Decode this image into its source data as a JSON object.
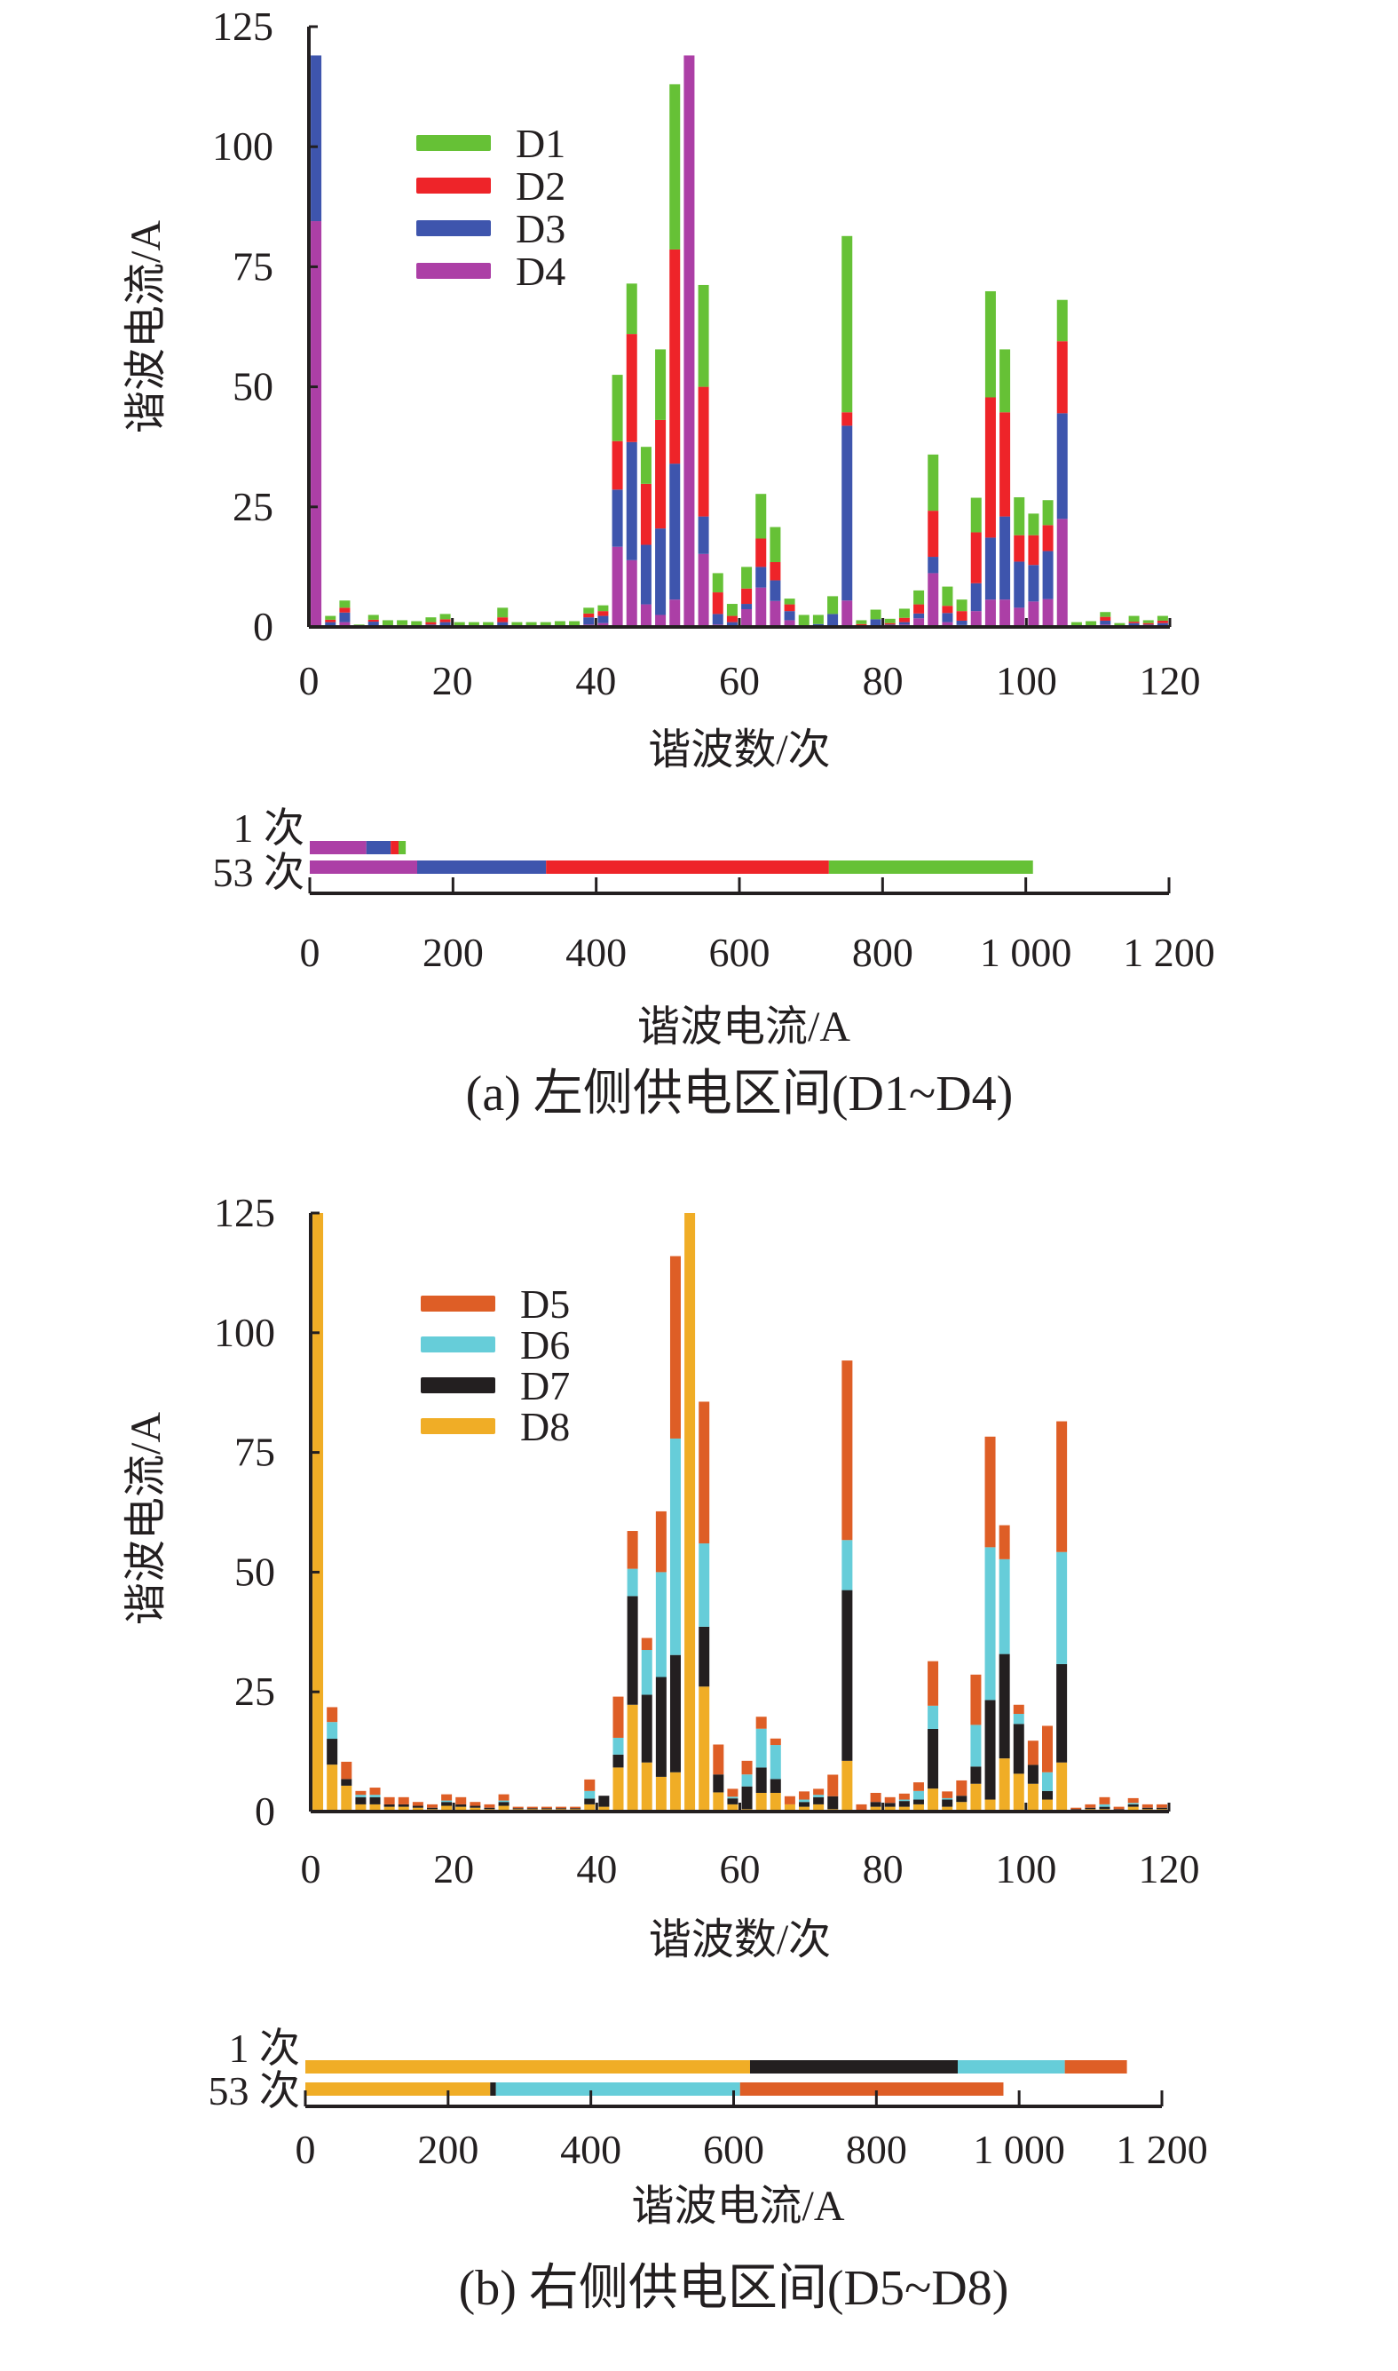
{
  "chart_data": [
    {
      "type": "bar",
      "stacked": true,
      "panel": "a",
      "xlabel": "谐波数/次",
      "ylabel": "谐波电流/A",
      "xlim": [
        0,
        120
      ],
      "ylim": [
        0,
        125
      ],
      "xticks": [
        "0",
        "20",
        "40",
        "60",
        "80",
        "100",
        "120"
      ],
      "yticks": [
        "0",
        "25",
        "50",
        "75",
        "100",
        "125"
      ],
      "harmonic_start": 1,
      "harmonic_step": 2,
      "legend_position": "top-left",
      "series": [
        {
          "name": "D4",
          "color": "#ac3fa6",
          "values": [
            84.5,
            0.3,
            1,
            0,
            0.3,
            0,
            0,
            0,
            0,
            0.3,
            0,
            0,
            0,
            0.2,
            0,
            0,
            0,
            0,
            0,
            0.5,
            0.8,
            16.7,
            13.9,
            4.7,
            2.5,
            5.7,
            119,
            15.2,
            0.5,
            0.3,
            3.7,
            8.2,
            5.4,
            1.4,
            0,
            0,
            0,
            5.5,
            0,
            0,
            0,
            0.5,
            1.8,
            11.2,
            1,
            0.4,
            3.3,
            5.7,
            5.7,
            4,
            5.3,
            5.8,
            22.5,
            0,
            0,
            0.5,
            0,
            0.3,
            0.2,
            0.3
          ]
        },
        {
          "name": "D3",
          "color": "#3e55ad",
          "values": [
            34.5,
            0.7,
            2,
            0,
            0.8,
            0,
            0,
            0,
            0.5,
            0.7,
            0,
            0,
            0,
            0.8,
            0,
            0,
            0,
            0,
            0,
            1.5,
            1.5,
            11.9,
            24.6,
            12.4,
            18,
            28.3,
            0,
            7.8,
            2.2,
            0.7,
            1.1,
            4.3,
            4.3,
            1.9,
            0,
            0.6,
            2.7,
            36.4,
            0.3,
            1.6,
            0.5,
            0.5,
            1,
            3.4,
            1.9,
            0.9,
            5.8,
            12.9,
            17.3,
            9.6,
            7.6,
            10,
            22,
            0,
            0,
            0.8,
            0,
            0.5,
            0.3,
            0.5
          ]
        },
        {
          "name": "D2",
          "color": "#ee2429",
          "values": [
            0,
            0.5,
            1,
            0,
            0.4,
            0.2,
            0.4,
            0,
            0.5,
            0.6,
            0,
            0,
            0,
            1,
            0,
            0,
            0,
            0.2,
            0.2,
            0.8,
            1,
            10.1,
            22.5,
            12.7,
            22.6,
            44.6,
            0,
            27,
            4.5,
            1.3,
            3.2,
            5.9,
            3.8,
            1.4,
            0.3,
            0,
            0,
            2.8,
            0.3,
            0,
            0.3,
            0.9,
            1.9,
            9.6,
            1.5,
            2,
            10.6,
            29.2,
            21.7,
            5.5,
            6.2,
            5.4,
            15,
            0.2,
            0.3,
            0.8,
            0,
            0.3,
            0.3,
            0.5
          ]
        },
        {
          "name": "D1",
          "color": "#66c136",
          "values": [
            0,
            0.8,
            1.5,
            0.5,
            1,
            1.2,
            1,
            1.2,
            1,
            1.1,
            1,
            1,
            1,
            2,
            1,
            1,
            1,
            1,
            1,
            1.2,
            1.2,
            13.8,
            10.5,
            7.7,
            14.7,
            34.4,
            0,
            21.2,
            4,
            2.5,
            4.5,
            9.3,
            7.3,
            1.2,
            2.2,
            1.9,
            3.7,
            36.7,
            0.8,
            2,
            0.9,
            1.9,
            2.9,
            11.7,
            4,
            2.4,
            7.2,
            22.1,
            13.1,
            7.9,
            4.5,
            5.2,
            8.6,
            0.8,
            0.9,
            1,
            0.8,
            1.2,
            0.6,
            1
          ]
        }
      ],
      "legend": [
        "D1",
        "D2",
        "D3",
        "D4"
      ]
    },
    {
      "type": "bar",
      "orientation": "horizontal",
      "stacked": true,
      "panel": "a",
      "xlabel": "谐波电流/A",
      "xlim": [
        0,
        1200
      ],
      "xticks": [
        "0",
        "200",
        "400",
        "600",
        "800",
        "1 000",
        "1 200"
      ],
      "categories": [
        "1 次",
        "53 次"
      ],
      "series": [
        {
          "name": "D4",
          "color": "#ac3fa6",
          "values": [
            79,
            150
          ]
        },
        {
          "name": "D3",
          "color": "#3e55ad",
          "values": [
            34,
            180
          ]
        },
        {
          "name": "D2",
          "color": "#ee2429",
          "values": [
            11,
            395
          ]
        },
        {
          "name": "D1",
          "color": "#66c136",
          "values": [
            10,
            285
          ]
        }
      ],
      "caption": "(a) 左侧供电区间(D1~D4)"
    },
    {
      "type": "bar",
      "stacked": true,
      "panel": "b",
      "xlabel": "谐波数/次",
      "ylabel": "谐波电流/A",
      "xlim": [
        0,
        120
      ],
      "ylim": [
        0,
        125
      ],
      "xticks": [
        "0",
        "20",
        "40",
        "60",
        "80",
        "100",
        "120"
      ],
      "yticks": [
        "0",
        "25",
        "50",
        "75",
        "100",
        "125"
      ],
      "harmonic_start": 1,
      "harmonic_step": 2,
      "legend_position": "top-left",
      "series": [
        {
          "name": "D8",
          "color": "#f0ad26",
          "values": [
            125,
            9.8,
            5.4,
            1.5,
            1.5,
            1,
            1,
            0.8,
            0.5,
            1.2,
            1,
            0.8,
            0.5,
            1.2,
            0.5,
            0.5,
            0.5,
            0.5,
            0.5,
            1.5,
            1,
            9.2,
            22.3,
            10.25,
            7.25,
            8.2,
            125,
            26.1,
            4,
            1.5,
            0.5,
            3.9,
            3.9,
            1.5,
            1,
            1.5,
            0.5,
            10.6,
            0,
            1,
            1,
            1,
            1.5,
            4.8,
            1,
            2,
            5.8,
            2.5,
            11.1,
            7.9,
            5.8,
            2.5,
            10.25,
            0.3,
            0.5,
            0.5,
            0.3,
            1,
            0.5,
            0.5
          ]
        },
        {
          "name": "D7",
          "color": "#231f20",
          "values": [
            0,
            5.4,
            1.4,
            1.5,
            1.5,
            0.5,
            0.5,
            0.4,
            0.3,
            0.8,
            0.5,
            0.4,
            0.3,
            0.8,
            0.2,
            0.2,
            0.2,
            0.2,
            0.2,
            1.2,
            2.3,
            2.7,
            22.7,
            14.15,
            20.85,
            24.5,
            0,
            12.5,
            3.75,
            1.25,
            4.75,
            5.3,
            2.9,
            0,
            1,
            1.5,
            2.7,
            35.65,
            0,
            1,
            0.8,
            1.2,
            1,
            12.45,
            1.5,
            1.3,
            3.6,
            20.8,
            21.8,
            10.4,
            3.95,
            1.8,
            20.55,
            0.2,
            0.3,
            0.5,
            0.2,
            0.5,
            0.3,
            0.3
          ]
        },
        {
          "name": "D6",
          "color": "#66cdd9",
          "values": [
            0,
            3.5,
            0,
            0.5,
            0.5,
            0,
            0,
            0,
            0,
            0.3,
            0,
            0,
            0,
            0.3,
            0,
            0,
            0,
            0,
            0,
            1.6,
            0,
            3.5,
            5.7,
            9.35,
            21.9,
            45.2,
            0,
            17.4,
            0,
            0.35,
            2.5,
            8.1,
            7.1,
            0,
            0.5,
            0.5,
            0,
            10.45,
            0,
            0,
            0,
            0.3,
            1.8,
            4.85,
            0.3,
            0,
            8.7,
            31.9,
            19.8,
            2.1,
            0,
            3.9,
            23.4,
            0,
            0,
            0.5,
            0,
            0.3,
            0,
            0
          ]
        },
        {
          "name": "D5",
          "color": "#de5e26",
          "values": [
            0,
            3.1,
            3.6,
            0.8,
            1.5,
            1.5,
            1.5,
            0.8,
            0.7,
            1.3,
            1.5,
            0.8,
            0.7,
            1.3,
            0.3,
            0.3,
            0.3,
            0.3,
            0.3,
            2.4,
            0,
            8.6,
            7.9,
            2.5,
            12.7,
            38.1,
            0,
            29.6,
            6.25,
            1.65,
            2.85,
            2.5,
            1.35,
            1.7,
            1.7,
            1.25,
            4.5,
            37.5,
            1.5,
            1.9,
            1.2,
            1.25,
            1.8,
            9.3,
            1.4,
            3.2,
            10.5,
            23.1,
            7.1,
            1.9,
            5.05,
            9.7,
            27.3,
            0.3,
            0.7,
            1.5,
            0.5,
            1,
            0.7,
            0.7
          ]
        }
      ],
      "legend": [
        "D5",
        "D6",
        "D7",
        "D8"
      ]
    },
    {
      "type": "bar",
      "orientation": "horizontal",
      "stacked": true,
      "panel": "b",
      "xlabel": "谐波电流/A",
      "xlim": [
        0,
        1200
      ],
      "xticks": [
        "0",
        "200",
        "400",
        "600",
        "800",
        "1 000",
        "1 200"
      ],
      "categories": [
        "1 次",
        "53 次"
      ],
      "series": [
        {
          "name": "D8",
          "color": "#f0ad26",
          "values": [
            623,
            259
          ]
        },
        {
          "name": "D7",
          "color": "#231f20",
          "values": [
            291,
            8
          ]
        },
        {
          "name": "D6",
          "color": "#66cdd9",
          "values": [
            150,
            342
          ]
        },
        {
          "name": "D5",
          "color": "#de5e26",
          "values": [
            87,
            369
          ]
        }
      ],
      "caption": "(b) 右侧供电区间(D5~D8)"
    }
  ]
}
